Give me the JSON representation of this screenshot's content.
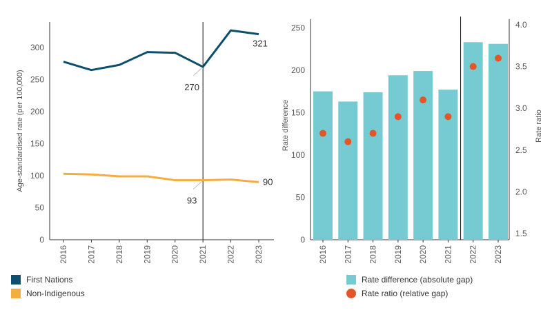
{
  "colors": {
    "first_nations": "#0b4f6c",
    "non_indigenous": "#f5ad42",
    "rate_difference": "#76cbd2",
    "rate_ratio": "#e5552a",
    "axis": "#333333",
    "tick_text": "#555555"
  },
  "chart_data": [
    {
      "type": "line",
      "ylabel": "Age-standardised rate (per 100,000)",
      "ylim": [
        0,
        340
      ],
      "yticks": [
        "0",
        "50",
        "100",
        "150",
        "200",
        "250",
        "300"
      ],
      "categories": [
        "2016",
        "2017",
        "2018",
        "2019",
        "2020",
        "2021",
        "2022",
        "2023"
      ],
      "reference_line": "2021",
      "series": [
        {
          "name": "First Nations",
          "color": "#0b4f6c",
          "values": [
            278,
            265,
            273,
            293,
            292,
            270,
            327,
            321
          ]
        },
        {
          "name": "Non-Indigenous",
          "color": "#f5ad42",
          "values": [
            103,
            102,
            99,
            99,
            93,
            93,
            94,
            90
          ]
        }
      ],
      "annotations": [
        {
          "category": "2021",
          "series": "First Nations",
          "label": "270",
          "position": "below-left"
        },
        {
          "category": "2023",
          "series": "First Nations",
          "label": "321",
          "position": "below"
        },
        {
          "category": "2021",
          "series": "Non-Indigenous",
          "label": "93",
          "position": "below-left"
        },
        {
          "category": "2023",
          "series": "Non-Indigenous",
          "label": "90",
          "position": "right"
        }
      ],
      "legend": [
        "First Nations",
        "Non-Indigenous"
      ]
    },
    {
      "type": "bar",
      "ylabel": "Rate difference",
      "y2label": "Rate ratio",
      "ylim": [
        0,
        260
      ],
      "y2lim": [
        1.5,
        4.0
      ],
      "yticks": [
        "0",
        "50",
        "100",
        "150",
        "200",
        "250"
      ],
      "y2ticks": [
        "1.5",
        "2.0",
        "2.5",
        "3.0",
        "3.5",
        "4.0"
      ],
      "categories": [
        "2016",
        "2017",
        "2018",
        "2019",
        "2020",
        "2021",
        "2022",
        "2023"
      ],
      "reference_line": "2021",
      "series": [
        {
          "name": "Rate difference (absolute gap)",
          "color": "#76cbd2",
          "type": "bar",
          "values": [
            175,
            163,
            174,
            194,
            199,
            177,
            233,
            231
          ]
        },
        {
          "name": "Rate ratio (relative gap)",
          "color": "#e5552a",
          "type": "scatter",
          "axis": "right",
          "values": [
            2.7,
            2.6,
            2.7,
            2.9,
            3.1,
            2.9,
            3.5,
            3.6
          ]
        }
      ],
      "legend": [
        "Rate difference (absolute gap)",
        "Rate ratio (relative gap)"
      ]
    }
  ]
}
